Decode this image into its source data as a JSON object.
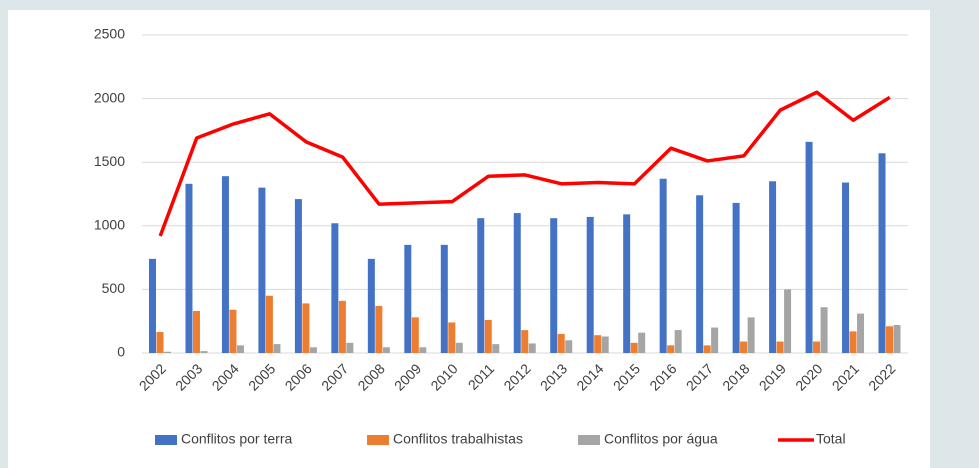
{
  "chart_data": {
    "type": "bar_line",
    "categories": [
      "2002",
      "2003",
      "2004",
      "2005",
      "2006",
      "2007",
      "2008",
      "2009",
      "2010",
      "2011",
      "2012",
      "2013",
      "2014",
      "2015",
      "2016",
      "2017",
      "2018",
      "2019",
      "2020",
      "2021",
      "2022"
    ],
    "series": [
      {
        "name": "Conflitos por terra",
        "color": "#4472c4",
        "type": "bar",
        "values": [
          740,
          1330,
          1390,
          1300,
          1210,
          1020,
          740,
          850,
          850,
          1060,
          1100,
          1060,
          1070,
          1090,
          1370,
          1240,
          1180,
          1350,
          1660,
          1340,
          1570
        ]
      },
      {
        "name": "Conflitos trabalhistas",
        "color": "#ed7d31",
        "type": "bar",
        "values": [
          165,
          330,
          340,
          450,
          390,
          410,
          370,
          280,
          240,
          260,
          180,
          150,
          140,
          80,
          60,
          60,
          90,
          90,
          90,
          170,
          210
        ]
      },
      {
        "name": "Conflitos por água",
        "color": "#a5a5a5",
        "type": "bar",
        "values": [
          10,
          15,
          60,
          70,
          45,
          80,
          45,
          45,
          80,
          70,
          75,
          100,
          130,
          160,
          180,
          200,
          280,
          500,
          360,
          310,
          220
        ]
      },
      {
        "name": "Total",
        "color": "#ff0000",
        "type": "line",
        "values": [
          920,
          1690,
          1800,
          1880,
          1660,
          1540,
          1170,
          1180,
          1190,
          1390,
          1400,
          1330,
          1340,
          1330,
          1610,
          1510,
          1550,
          1910,
          2050,
          1830,
          2010
        ]
      }
    ],
    "ylim": [
      0,
      2500
    ],
    "yticks": [
      0,
      500,
      1000,
      1500,
      2000,
      2500
    ],
    "grid": true,
    "legend": "bottom"
  }
}
